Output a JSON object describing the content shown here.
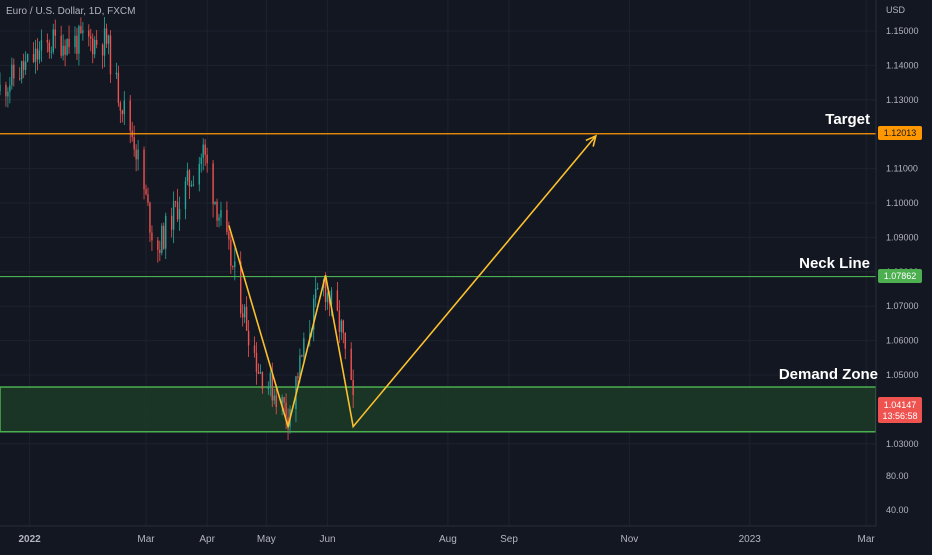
{
  "title": "Euro / U.S. Dollar, 1D, FXCM",
  "currency": "USD",
  "colors": {
    "background": "#131722",
    "grid": "#1e222d",
    "axis_text": "#b2b5be",
    "up": "#26a69a",
    "down": "#ef5350",
    "target": "#ff9800",
    "neck": "#4caf50",
    "pattern": "#fbc02d",
    "zone_fill": "#1c3a26"
  },
  "labels": {
    "target": "Target",
    "neck": "Neck Line",
    "demand": "Demand Zone"
  },
  "price_tags": {
    "target": "1.12013",
    "neck": "1.07862",
    "current": "1.04147",
    "countdown": "13:56:58"
  },
  "secondary_scale": [
    "80.00",
    "40.00"
  ],
  "chart_data": {
    "type": "candlestick",
    "y_ticks": [
      1.15,
      1.14,
      1.13,
      1.12,
      1.11,
      1.1,
      1.09,
      1.08,
      1.07,
      1.06,
      1.05,
      1.04,
      1.03
    ],
    "y_tick_labels": [
      "1.15000",
      "1.14000",
      "1.13000",
      "1.12000",
      "1.11000",
      "1.10000",
      "1.09000",
      "1.08000",
      "1.07000",
      "1.06000",
      "1.05000",
      "1.04000",
      "1.03000"
    ],
    "x_tick_labels": [
      "2022",
      "Mar",
      "Apr",
      "May",
      "Jun",
      "Aug",
      "Sep",
      "Nov",
      "2023",
      "Mar"
    ],
    "x_tick_dates": [
      "2022-01-01",
      "2022-03-01",
      "2022-04-01",
      "2022-05-01",
      "2022-06-01",
      "2022-08-01",
      "2022-09-01",
      "2022-11-01",
      "2023-01-01",
      "2023-03-01"
    ],
    "start_date": "2021-12-17",
    "key_closes": [
      {
        "date": "2021-12-17",
        "close": 1.1325
      },
      {
        "date": "2022-01-14",
        "close": 1.147
      },
      {
        "date": "2022-02-10",
        "close": 1.147
      },
      {
        "date": "2022-02-15",
        "close": 1.134
      },
      {
        "date": "2022-02-24",
        "close": 1.1185
      },
      {
        "date": "2022-03-07",
        "close": 1.086
      },
      {
        "date": "2022-03-31",
        "close": 1.115
      },
      {
        "date": "2022-04-14",
        "close": 1.083
      },
      {
        "date": "2022-04-28",
        "close": 1.052
      },
      {
        "date": "2022-05-13",
        "close": 1.039
      },
      {
        "date": "2022-05-30",
        "close": 1.078
      },
      {
        "date": "2022-06-09",
        "close": 1.063
      },
      {
        "date": "2022-06-15",
        "close": 1.0414
      }
    ],
    "horizontal_levels": [
      {
        "name": "Target",
        "price": 1.12013
      },
      {
        "name": "Neck Line",
        "price": 1.07862
      }
    ],
    "demand_zone": {
      "name": "Demand Zone",
      "top": 1.0465,
      "bottom": 1.0335
    },
    "pattern_path": [
      {
        "date": "2022-04-12",
        "price": 1.0935
      },
      {
        "date": "2022-05-12",
        "price": 1.035
      },
      {
        "date": "2022-05-31",
        "price": 1.079
      },
      {
        "date": "2022-06-14",
        "price": 1.035
      },
      {
        "date": "2022-10-15",
        "price": 1.1195
      }
    ]
  }
}
